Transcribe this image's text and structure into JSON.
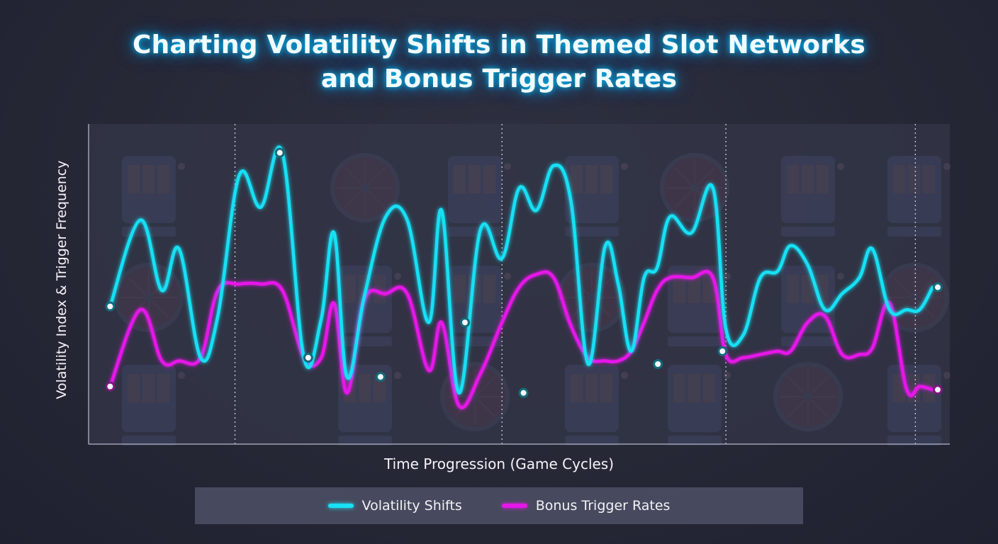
{
  "chart_data": {
    "type": "line",
    "title": [
      "Charting Volatility Shifts in Themed Slot Networks",
      "and Bonus Trigger Rates"
    ],
    "xlabel": "Time Progression (Game Cycles)",
    "ylabel": "Volatility Index & Trigger Frequency",
    "grid": false,
    "legend_position": "bottom",
    "x_ticks": [],
    "y_ticks": [],
    "xlim": [
      0,
      1
    ],
    "ylim": [
      0,
      1
    ],
    "cycle_dividers_x": [
      0.17,
      0.48,
      0.74,
      0.96
    ],
    "series": [
      {
        "name": "Volatility Shifts",
        "color": "#19e0f5",
        "x": [
          0.025,
          0.06,
          0.085,
          0.105,
          0.13,
          0.15,
          0.175,
          0.2,
          0.225,
          0.25,
          0.27,
          0.285,
          0.3,
          0.32,
          0.345,
          0.37,
          0.395,
          0.41,
          0.43,
          0.455,
          0.48,
          0.5,
          0.52,
          0.54,
          0.56,
          0.58,
          0.6,
          0.615,
          0.63,
          0.645,
          0.66,
          0.675,
          0.7,
          0.725,
          0.74,
          0.76,
          0.78,
          0.8,
          0.815,
          0.835,
          0.855,
          0.875,
          0.895,
          0.91,
          0.93,
          0.95,
          0.965,
          0.98
        ],
        "y": [
          0.43,
          0.7,
          0.48,
          0.61,
          0.27,
          0.4,
          0.84,
          0.74,
          0.91,
          0.27,
          0.39,
          0.66,
          0.21,
          0.46,
          0.71,
          0.7,
          0.38,
          0.73,
          0.16,
          0.67,
          0.58,
          0.8,
          0.73,
          0.87,
          0.76,
          0.25,
          0.62,
          0.5,
          0.29,
          0.52,
          0.55,
          0.71,
          0.66,
          0.8,
          0.36,
          0.34,
          0.52,
          0.54,
          0.62,
          0.56,
          0.42,
          0.47,
          0.52,
          0.61,
          0.42,
          0.42,
          0.42,
          0.49
        ]
      },
      {
        "name": "Bonus Trigger Rates",
        "color": "#e617e9",
        "x": [
          0.025,
          0.06,
          0.085,
          0.105,
          0.13,
          0.15,
          0.175,
          0.2,
          0.225,
          0.25,
          0.27,
          0.285,
          0.3,
          0.32,
          0.345,
          0.37,
          0.395,
          0.41,
          0.43,
          0.455,
          0.48,
          0.5,
          0.52,
          0.54,
          0.56,
          0.58,
          0.6,
          0.615,
          0.63,
          0.645,
          0.66,
          0.675,
          0.7,
          0.725,
          0.74,
          0.76,
          0.78,
          0.8,
          0.815,
          0.835,
          0.855,
          0.875,
          0.895,
          0.91,
          0.93,
          0.95,
          0.965,
          0.98
        ],
        "y": [
          0.18,
          0.42,
          0.26,
          0.26,
          0.27,
          0.48,
          0.5,
          0.5,
          0.48,
          0.27,
          0.27,
          0.44,
          0.16,
          0.45,
          0.47,
          0.47,
          0.23,
          0.38,
          0.12,
          0.22,
          0.38,
          0.49,
          0.53,
          0.52,
          0.37,
          0.27,
          0.26,
          0.26,
          0.29,
          0.38,
          0.48,
          0.52,
          0.52,
          0.52,
          0.28,
          0.27,
          0.28,
          0.29,
          0.29,
          0.38,
          0.4,
          0.28,
          0.28,
          0.3,
          0.44,
          0.17,
          0.18,
          0.17
        ]
      }
    ],
    "markers": [
      {
        "series": 0,
        "x": 0.025,
        "y": 0.43
      },
      {
        "series": 0,
        "x": 0.222,
        "y": 0.91
      },
      {
        "series": 0,
        "x": 0.255,
        "y": 0.27
      },
      {
        "series": 0,
        "x": 0.339,
        "y": 0.21
      },
      {
        "series": 0,
        "x": 0.437,
        "y": 0.38
      },
      {
        "series": 0,
        "x": 0.505,
        "y": 0.16
      },
      {
        "series": 0,
        "x": 0.661,
        "y": 0.25
      },
      {
        "series": 0,
        "x": 0.736,
        "y": 0.29
      },
      {
        "series": 0,
        "x": 0.986,
        "y": 0.49
      },
      {
        "series": 1,
        "x": 0.025,
        "y": 0.18
      },
      {
        "series": 1,
        "x": 0.986,
        "y": 0.17
      }
    ]
  }
}
